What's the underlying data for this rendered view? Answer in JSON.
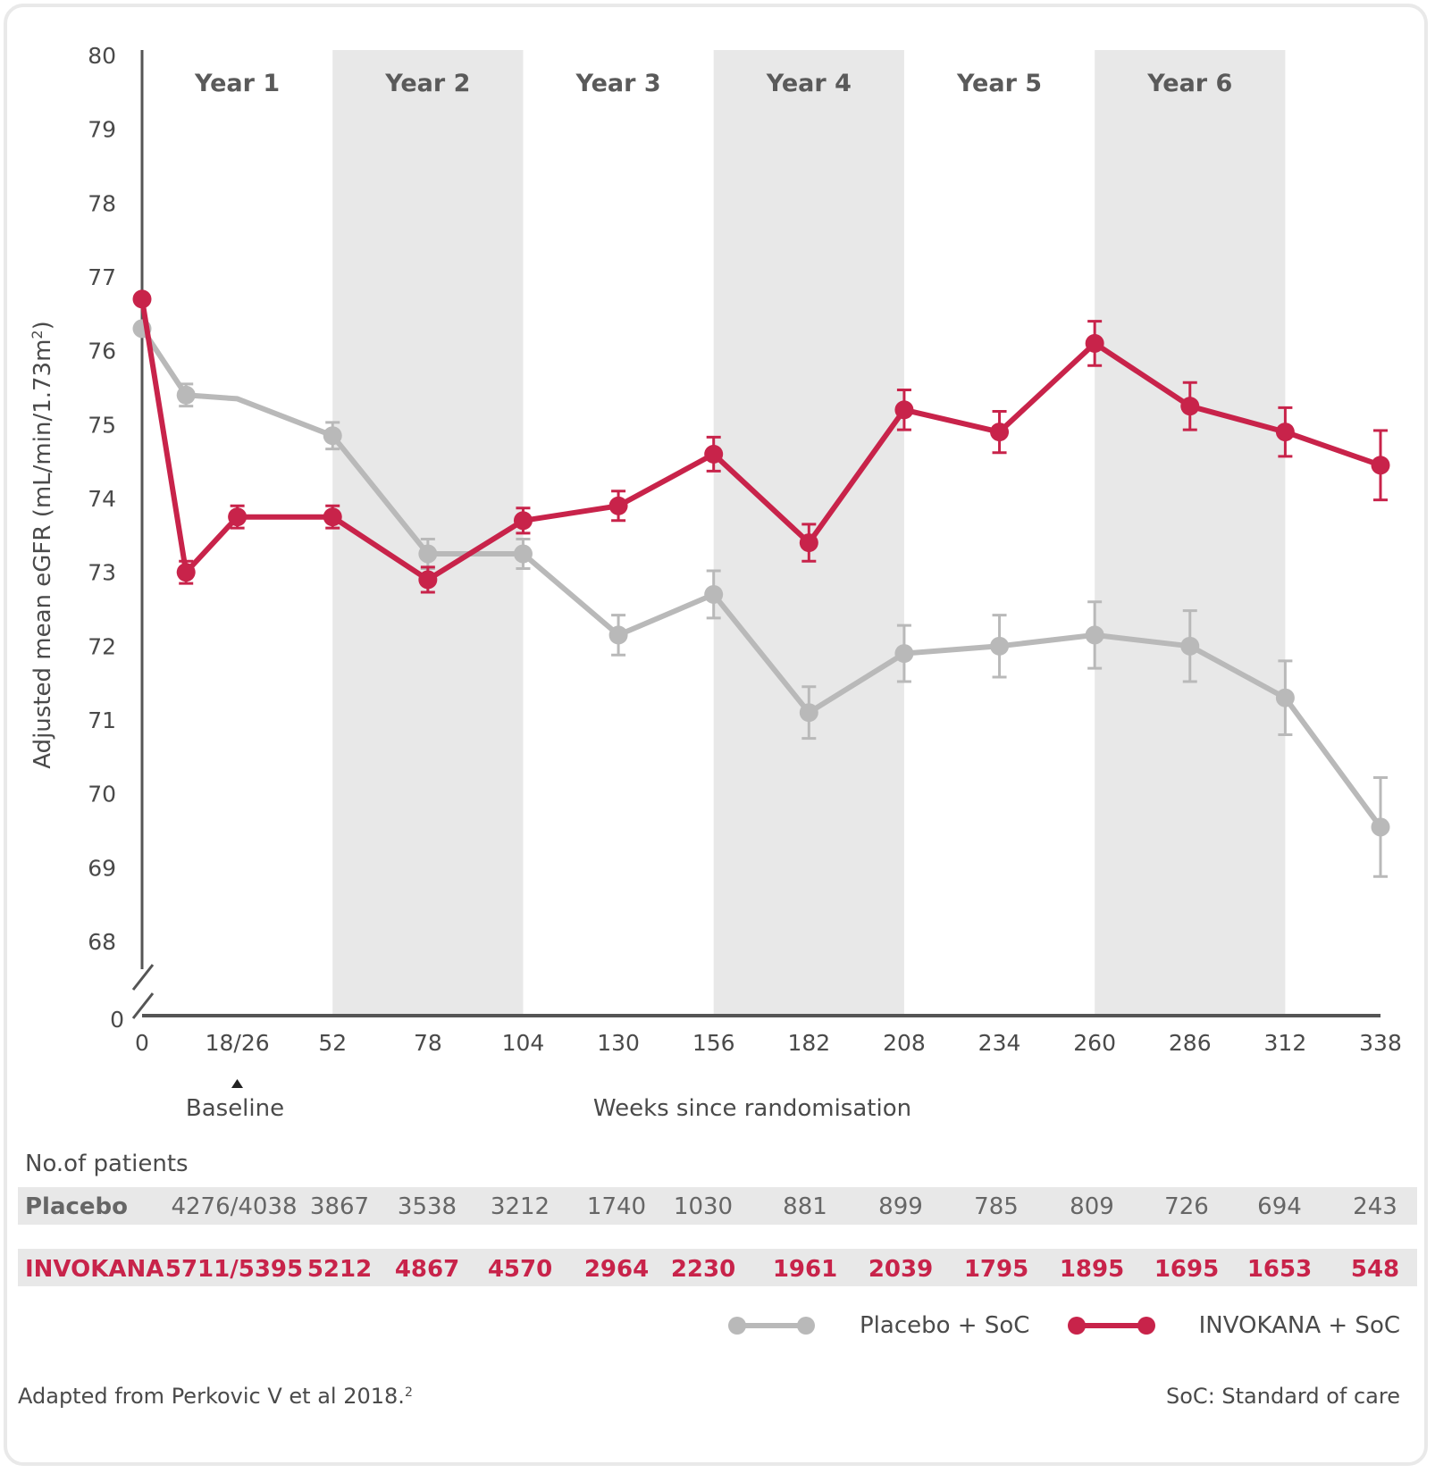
{
  "chart_data": {
    "type": "line",
    "ylabel": "Adjusted mean eGFR (mL/min/1.73m",
    "ylabel_sup": "2",
    "ylabel_close": ")",
    "ylim": [
      68,
      80
    ],
    "yticks": [
      "80",
      "79",
      "78",
      "77",
      "76",
      "75",
      "74",
      "73",
      "72",
      "71",
      "70",
      "69",
      "68"
    ],
    "y_break_label": "0",
    "xlabel": "Weeks since randomisation",
    "xticks": [
      "0",
      "18/26",
      "52",
      "78",
      "104",
      "130",
      "156",
      "182",
      "208",
      "234",
      "260",
      "286",
      "312",
      "338"
    ],
    "baseline_marker_label": "Baseline",
    "bands": [
      {
        "label": "Year 1",
        "shaded": false
      },
      {
        "label": "Year 2",
        "shaded": true
      },
      {
        "label": "Year 3",
        "shaded": false
      },
      {
        "label": "Year 4",
        "shaded": true
      },
      {
        "label": "Year 5",
        "shaded": false
      },
      {
        "label": "Year 6",
        "shaded": true
      }
    ],
    "series": [
      {
        "name": "Placebo + SoC",
        "color": "#b9b9b9",
        "points": [
          {
            "x": 0,
            "y": 76.3
          },
          {
            "x": 12,
            "y": 75.4,
            "err": 0.15
          },
          {
            "x": 26,
            "y": 75.35
          },
          {
            "x": 52,
            "y": 74.85,
            "err": 0.18
          },
          {
            "x": 78,
            "y": 73.25,
            "err": 0.2
          },
          {
            "x": 104,
            "y": 73.25,
            "err": 0.2
          },
          {
            "x": 130,
            "y": 72.15,
            "err": 0.27
          },
          {
            "x": 156,
            "y": 72.7,
            "err": 0.32
          },
          {
            "x": 182,
            "y": 71.1,
            "err": 0.35
          },
          {
            "x": 208,
            "y": 71.9,
            "err": 0.38
          },
          {
            "x": 234,
            "y": 72.0,
            "err": 0.42
          },
          {
            "x": 260,
            "y": 72.15,
            "err": 0.45
          },
          {
            "x": 286,
            "y": 72.0,
            "err": 0.48
          },
          {
            "x": 312,
            "y": 71.3,
            "err": 0.5
          },
          {
            "x": 338,
            "y": 69.55,
            "err": 0.67
          }
        ]
      },
      {
        "name": "INVOKANA + SoC",
        "color": "#c8234a",
        "points": [
          {
            "x": 0,
            "y": 76.7
          },
          {
            "x": 12,
            "y": 73.0,
            "err": 0.15
          },
          {
            "x": 26,
            "y": 73.75,
            "err": 0.15
          },
          {
            "x": 52,
            "y": 73.75,
            "err": 0.15
          },
          {
            "x": 78,
            "y": 72.9,
            "err": 0.17
          },
          {
            "x": 104,
            "y": 73.7,
            "err": 0.17
          },
          {
            "x": 130,
            "y": 73.9,
            "err": 0.2
          },
          {
            "x": 156,
            "y": 74.6,
            "err": 0.23
          },
          {
            "x": 182,
            "y": 73.4,
            "err": 0.25
          },
          {
            "x": 208,
            "y": 75.2,
            "err": 0.27
          },
          {
            "x": 234,
            "y": 74.9,
            "err": 0.28
          },
          {
            "x": 260,
            "y": 76.1,
            "err": 0.3
          },
          {
            "x": 286,
            "y": 75.25,
            "err": 0.32
          },
          {
            "x": 312,
            "y": 74.9,
            "err": 0.33
          },
          {
            "x": 338,
            "y": 74.45,
            "err": 0.47
          }
        ]
      }
    ],
    "legend_position": "bottom-right"
  },
  "patients_table": {
    "title": "No.of patients",
    "rows": [
      {
        "label": "Placebo",
        "values": [
          "4276/4038",
          "3867",
          "3538",
          "3212",
          "1740",
          "1030",
          "881",
          "899",
          "785",
          "809",
          "726",
          "694",
          "243"
        ]
      },
      {
        "label": "INVOKANA",
        "values": [
          "5711/5395",
          "5212",
          "4867",
          "4570",
          "2964",
          "2230",
          "1961",
          "2039",
          "1795",
          "1895",
          "1695",
          "1653",
          "548"
        ]
      }
    ]
  },
  "footer": {
    "source": "Adapted from Perkovic V et al 2018.",
    "source_sup": "2",
    "note": "SoC: Standard of care"
  },
  "colors": {
    "placebo": "#b9b9b9",
    "invokana": "#c8234a",
    "band": "#e8e8e8",
    "axis": "#555555"
  }
}
